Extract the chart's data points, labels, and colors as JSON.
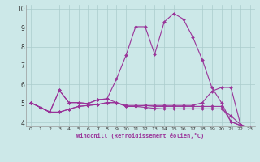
{
  "xlabel": "Windchill (Refroidissement éolien,°C)",
  "xlim": [
    -0.5,
    23.5
  ],
  "ylim": [
    3.8,
    10.2
  ],
  "yticks": [
    4,
    5,
    6,
    7,
    8,
    9,
    10
  ],
  "xticks": [
    0,
    1,
    2,
    3,
    4,
    5,
    6,
    7,
    8,
    9,
    10,
    11,
    12,
    13,
    14,
    15,
    16,
    17,
    18,
    19,
    20,
    21,
    22,
    23
  ],
  "bg_color": "#cce8e8",
  "grid_color": "#aacccc",
  "line_color": "#993399",
  "lines": [
    [
      5.05,
      4.8,
      4.55,
      5.7,
      5.05,
      5.05,
      5.0,
      5.2,
      5.25,
      6.3,
      7.55,
      9.05,
      9.05,
      7.6,
      9.3,
      9.75,
      9.45,
      8.5,
      7.3,
      5.85,
      5.05,
      4.05,
      3.85,
      3.7
    ],
    [
      5.05,
      4.8,
      4.55,
      5.7,
      5.05,
      5.05,
      5.0,
      5.2,
      5.25,
      5.05,
      4.85,
      4.85,
      4.9,
      4.85,
      4.85,
      4.85,
      4.85,
      4.85,
      4.85,
      4.85,
      4.85,
      4.05,
      3.85,
      3.7
    ],
    [
      5.05,
      4.8,
      4.55,
      4.55,
      4.7,
      4.85,
      4.9,
      4.95,
      5.05,
      5.05,
      4.9,
      4.9,
      4.9,
      4.9,
      4.9,
      4.9,
      4.9,
      4.9,
      5.05,
      5.65,
      5.85,
      5.85,
      3.9,
      3.7
    ],
    [
      5.05,
      4.8,
      4.55,
      4.55,
      4.7,
      4.85,
      4.9,
      4.95,
      5.05,
      5.05,
      4.85,
      4.85,
      4.8,
      4.75,
      4.72,
      4.72,
      4.72,
      4.72,
      4.72,
      4.72,
      4.72,
      4.35,
      3.9,
      3.7
    ]
  ]
}
